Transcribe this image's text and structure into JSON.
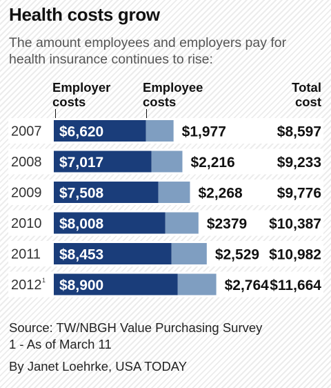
{
  "header": {
    "title": "Health costs grow",
    "subtitle": "The amount employees and employers pay for health insurance continues to rise:"
  },
  "columns": {
    "employer": [
      "Employer",
      "costs"
    ],
    "employee": [
      "Employee",
      "costs"
    ],
    "total": [
      "Total",
      "cost"
    ]
  },
  "chart_data": {
    "type": "bar",
    "stacked": true,
    "orientation": "horizontal",
    "categories": [
      "2007",
      "2008",
      "2009",
      "2010",
      "2011",
      "2012"
    ],
    "category_marks": [
      "",
      "",
      "",
      "",
      "",
      "1"
    ],
    "series": [
      {
        "name": "Employer costs",
        "values": [
          6620,
          7017,
          7508,
          8008,
          8453,
          8900
        ],
        "labels": [
          "$6,620",
          "$7,017",
          "$7,508",
          "$8,008",
          "$8,453",
          "$8,900"
        ],
        "color": "#1a3d7a"
      },
      {
        "name": "Employee costs",
        "values": [
          1977,
          2216,
          2268,
          2379,
          2529,
          2764
        ],
        "labels": [
          "$1,977",
          "$2,216",
          "$2,268",
          "$2379",
          "$2,529",
          "$2,764"
        ],
        "color": "#7f9ec1"
      }
    ],
    "totals": {
      "name": "Total cost",
      "values": [
        8597,
        9233,
        9776,
        10387,
        10982,
        11664
      ],
      "labels": [
        "$8,597",
        "$9,233",
        "$9,776",
        "$10,387",
        "$10,982",
        "$11,664"
      ]
    }
  },
  "footer": {
    "source": "Source: TW/NBGH Value Purchasing Survey",
    "footnote": "1 - As of March 11",
    "byline": "By Janet Loehrke, USA TODAY"
  }
}
